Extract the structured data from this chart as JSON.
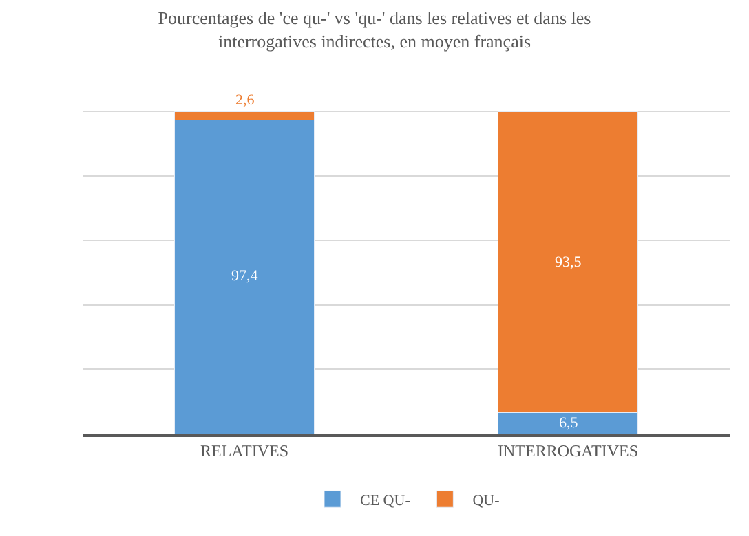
{
  "chart_data": {
    "type": "bar",
    "title": "Pourcentages de 'ce qu-' vs 'qu-' dans les relatives et dans les interrogatives indirectes, en moyen français",
    "categories": [
      "RELATIVES",
      "INTERROGATIVES"
    ],
    "series": [
      {
        "name": "CE QU-",
        "color": "#5b9bd5",
        "values": [
          97.4,
          6.5
        ],
        "value_labels": [
          "97,4",
          "6,5"
        ]
      },
      {
        "name": "QU-",
        "color": "#ed7d31",
        "values": [
          2.6,
          93.5
        ],
        "value_labels": [
          "2,6",
          "93,5"
        ]
      }
    ],
    "stacked": true,
    "tick_labels": "x",
    "grid": "y",
    "legend": "bottom"
  }
}
